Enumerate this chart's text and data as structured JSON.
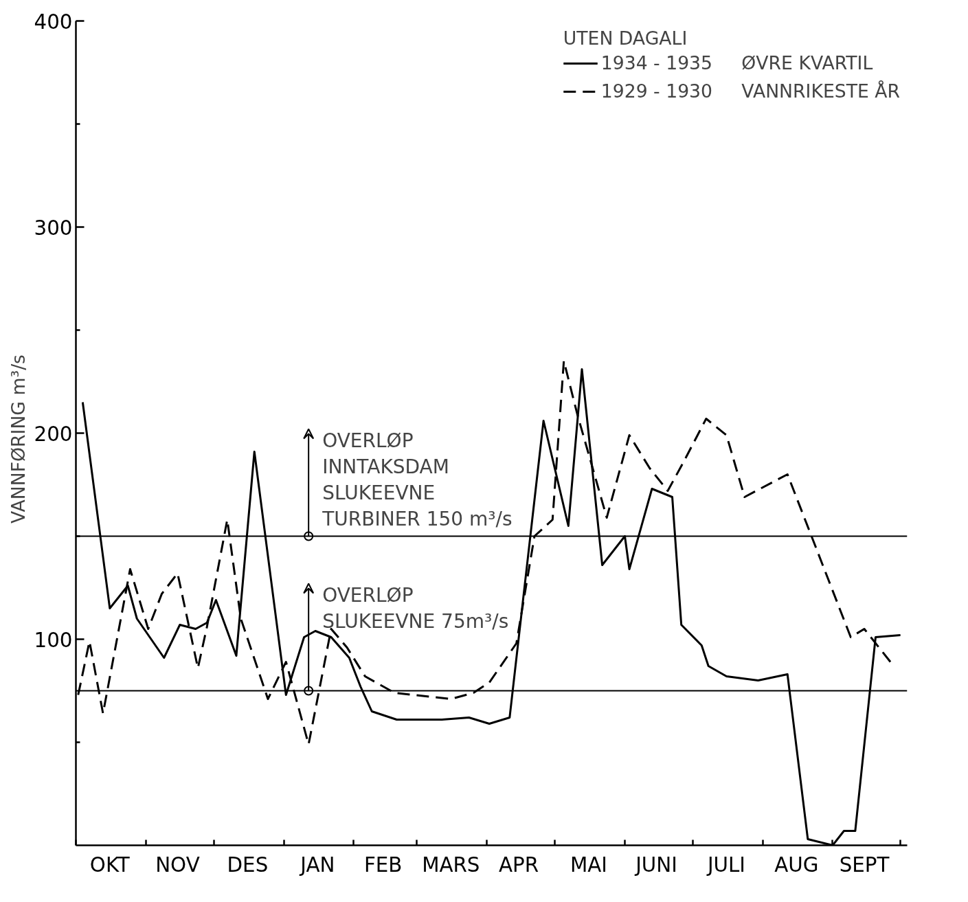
{
  "chart_data": {
    "type": "line",
    "ylabel": "VANNFØRING   m³/s",
    "legend_title": "UTEN DAGALI",
    "legend": "top right",
    "grid": false,
    "marker": "none",
    "xlim": [
      "1934-10-01",
      "1935-10-04"
    ],
    "ylim": [
      0,
      400
    ],
    "xticks": [
      {
        "value": "1934-10-01",
        "label": null
      },
      {
        "value": "1934-10-16",
        "label": "OKT"
      },
      {
        "value": "1934-11-01",
        "label": null
      },
      {
        "value": "1934-11-15",
        "label": "NOV"
      },
      {
        "value": "1934-12-01",
        "label": null
      },
      {
        "value": "1934-12-16",
        "label": "DES"
      },
      {
        "value": "1935-01-01",
        "label": null
      },
      {
        "value": "1935-01-16",
        "label": "JAN"
      },
      {
        "value": "1935-02-01",
        "label": null
      },
      {
        "value": "1935-02-14",
        "label": "FEB"
      },
      {
        "value": "1935-03-01",
        "label": null
      },
      {
        "value": "1935-03-16",
        "label": "MARS"
      },
      {
        "value": "1935-04-01",
        "label": null
      },
      {
        "value": "1935-04-15",
        "label": "APR"
      },
      {
        "value": "1935-05-01",
        "label": null
      },
      {
        "value": "1935-05-16",
        "label": "MAI"
      },
      {
        "value": "1935-06-01",
        "label": null
      },
      {
        "value": "1935-06-15",
        "label": "JUNI"
      },
      {
        "value": "1935-07-01",
        "label": null
      },
      {
        "value": "1935-07-16",
        "label": "JULI"
      },
      {
        "value": "1935-08-01",
        "label": null
      },
      {
        "value": "1935-08-16",
        "label": "AUG"
      },
      {
        "value": "1935-09-01",
        "label": null
      },
      {
        "value": "1935-09-15",
        "label": "SEPT"
      },
      {
        "value": "1935-10-01",
        "label": null
      }
    ],
    "yticks": [
      {
        "value": 50,
        "label": null
      },
      100,
      {
        "value": 150,
        "label": null
      },
      200,
      {
        "value": 250,
        "label": null
      },
      300,
      {
        "value": 350,
        "label": null
      },
      400
    ],
    "ref_lines": [
      {
        "axis": "y",
        "value": 150,
        "color": "#000000"
      },
      {
        "axis": "y",
        "value": 75,
        "color": "#000000"
      }
    ],
    "annotations": [
      {
        "text": "OVERLØP\nINNTAKSDAM\nSLUKEEVNE\nTURBINER  150 m³/s",
        "x": "1935-01-12",
        "y": 150
      },
      {
        "text": "OVERLØP\nSLUKEEVNE  75m³/s",
        "x": "1935-01-12",
        "y": 75
      }
    ],
    "series": [
      {
        "name": "1934 - 1935     ØVRE KVARTIL",
        "color": "#000000",
        "line_style": "solid",
        "x": [
          "1934-10-04",
          "1934-10-16",
          "1934-10-24",
          "1934-10-28",
          "1934-11-09",
          "1934-11-16",
          "1934-11-23",
          "1934-11-28",
          "1934-12-02",
          "1934-12-11",
          "1934-12-19",
          "1935-01-02",
          "1935-01-10",
          "1935-01-15",
          "1935-01-22",
          "1935-01-30",
          "1935-02-04",
          "1935-02-09",
          "1935-02-20",
          "1935-03-12",
          "1935-03-24",
          "1935-04-02",
          "1935-04-11",
          "1935-04-26",
          "1935-05-07",
          "1935-05-13",
          "1935-05-22",
          "1935-06-01",
          "1935-06-03",
          "1935-06-13",
          "1935-06-22",
          "1935-06-26",
          "1935-07-05",
          "1935-07-08",
          "1935-07-16",
          "1935-07-30",
          "1935-08-12",
          "1935-08-21",
          "1935-09-01",
          "1935-09-06",
          "1935-09-11",
          "1935-09-20",
          "1935-10-01"
        ],
        "values": [
          215,
          115,
          126,
          110,
          91,
          107,
          105,
          108,
          119,
          92,
          191,
          73,
          101,
          104,
          101,
          91,
          77,
          65,
          61,
          61,
          62,
          59,
          62,
          206,
          155,
          231,
          136,
          150,
          134,
          173,
          169,
          107,
          97,
          87,
          82,
          80,
          83,
          3,
          0,
          7,
          7,
          101,
          102
        ]
      },
      {
        "name": "1929 - 1930     VANNRIKESTE ÅR",
        "color": "#000000",
        "line_style": "dashed",
        "x": [
          "1934-10-02",
          "1934-10-07",
          "1934-10-13",
          "1934-10-25",
          "1934-11-02",
          "1934-11-08",
          "1934-11-15",
          "1934-11-24",
          "1934-11-28",
          "1934-12-07",
          "1934-12-13",
          "1934-12-25",
          "1935-01-02",
          "1935-01-12",
          "1935-01-22",
          "1935-01-29",
          "1935-02-06",
          "1935-02-19",
          "1935-03-16",
          "1935-03-26",
          "1935-04-02",
          "1935-04-14",
          "1935-04-22",
          "1935-04-30",
          "1935-05-05",
          "1935-05-11",
          "1935-05-24",
          "1935-06-03",
          "1935-06-12",
          "1935-06-20",
          "1935-06-27",
          "1935-07-07",
          "1935-07-16",
          "1935-07-24",
          "1935-08-12",
          "1935-09-09",
          "1935-09-15",
          "1935-09-28"
        ],
        "values": [
          73,
          99,
          64,
          134,
          105,
          122,
          132,
          86,
          106,
          158,
          110,
          71,
          89,
          49,
          105,
          96,
          82,
          74,
          71,
          74,
          79,
          98,
          150,
          158,
          235,
          209,
          159,
          199,
          183,
          172,
          186,
          207,
          199,
          169,
          180,
          101,
          105,
          87
        ]
      }
    ]
  }
}
